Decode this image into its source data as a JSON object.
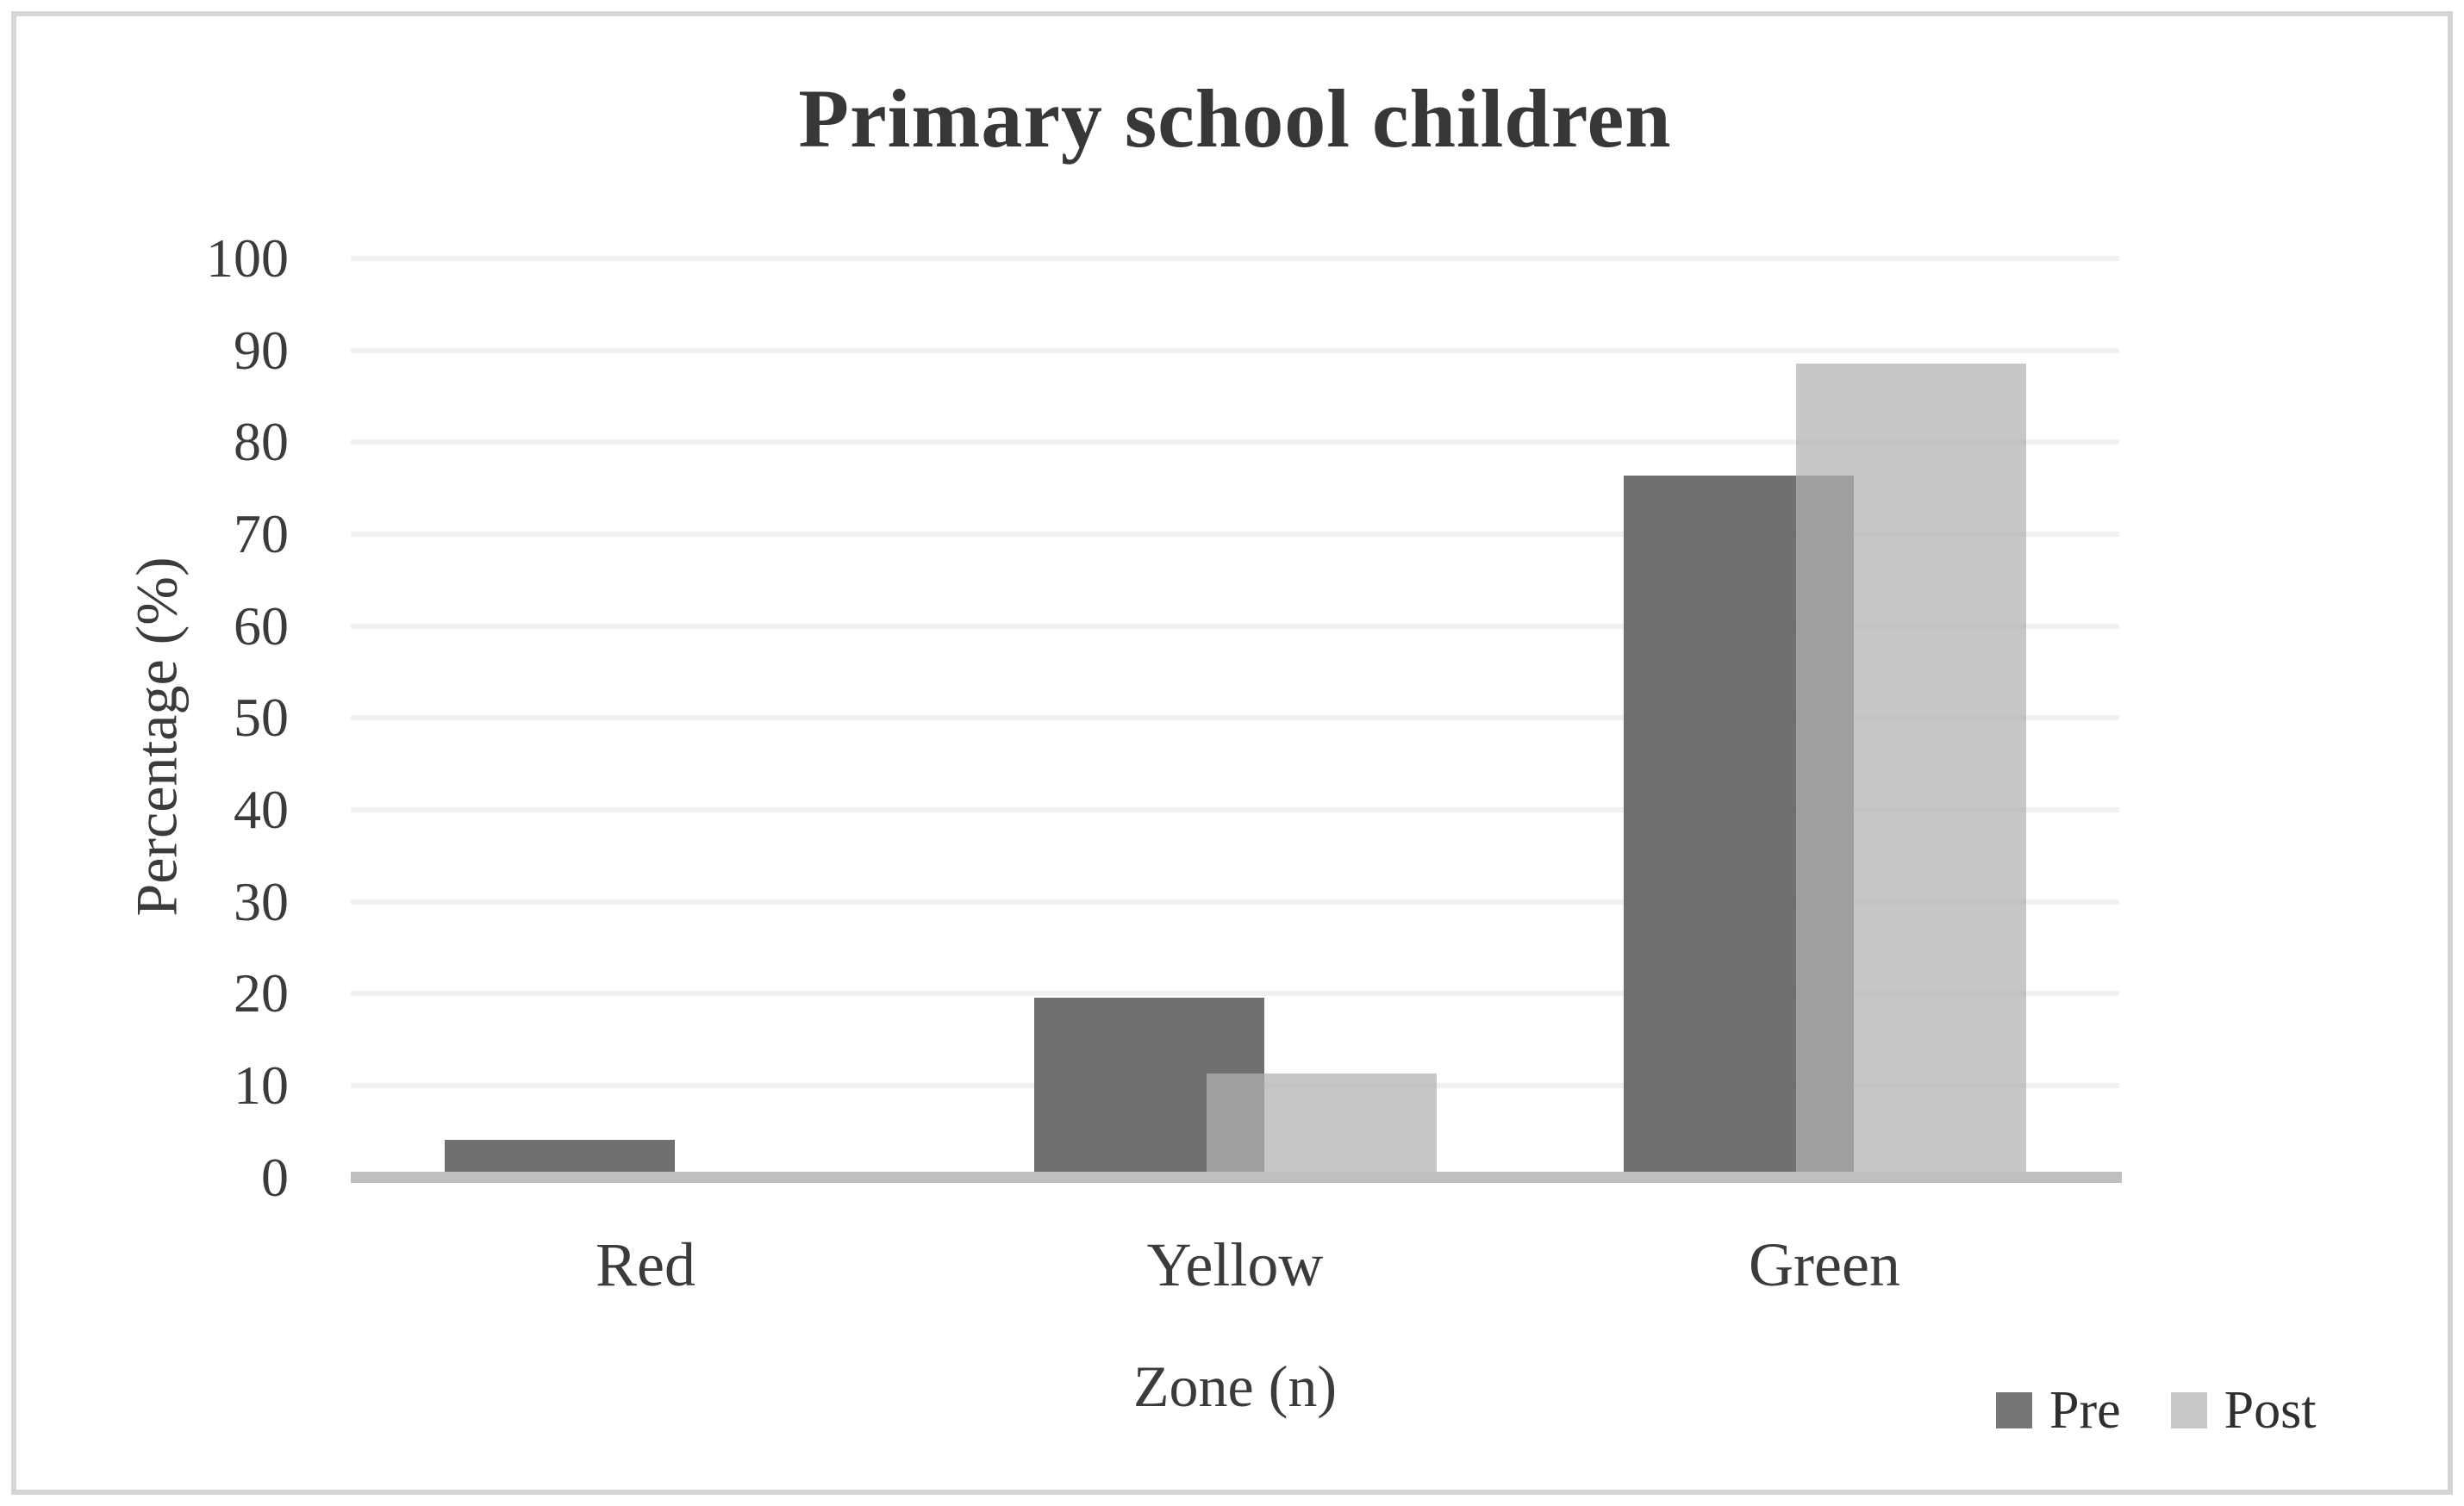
{
  "figure": {
    "background_color": "#ffffff",
    "border_color": "#d6d6d6"
  },
  "chart_data": {
    "type": "bar",
    "title": "Primary school children",
    "xlabel": "Zone (n)",
    "ylabel": "Percentage (%)",
    "categories": [
      "Red",
      "Yellow",
      "Green"
    ],
    "series": [
      {
        "name": "Pre",
        "color": "#767676",
        "fill_rgba": "rgba(100,100,100,0.92)",
        "values": [
          4.1,
          19.6,
          76.4
        ]
      },
      {
        "name": "Post",
        "color": "#c9c9c9",
        "fill_rgba": "rgba(178,178,178,0.72)",
        "values": [
          0,
          11.3,
          88.6
        ]
      }
    ],
    "ylim": [
      0,
      100
    ],
    "yticks": [
      0,
      10,
      20,
      30,
      40,
      50,
      60,
      70,
      80,
      90,
      100
    ],
    "grid": "horizontal",
    "gridline_color": "#f1f1f1",
    "axis_line_color": "#bfbfbf",
    "text_color": "#3b3b3b",
    "legend": {
      "position": "bottom-right",
      "labels": [
        "Pre",
        "Post"
      ]
    },
    "bar_style": {
      "series_overlap": "partial",
      "overlap_blend_color": "#a0a0a0"
    }
  }
}
